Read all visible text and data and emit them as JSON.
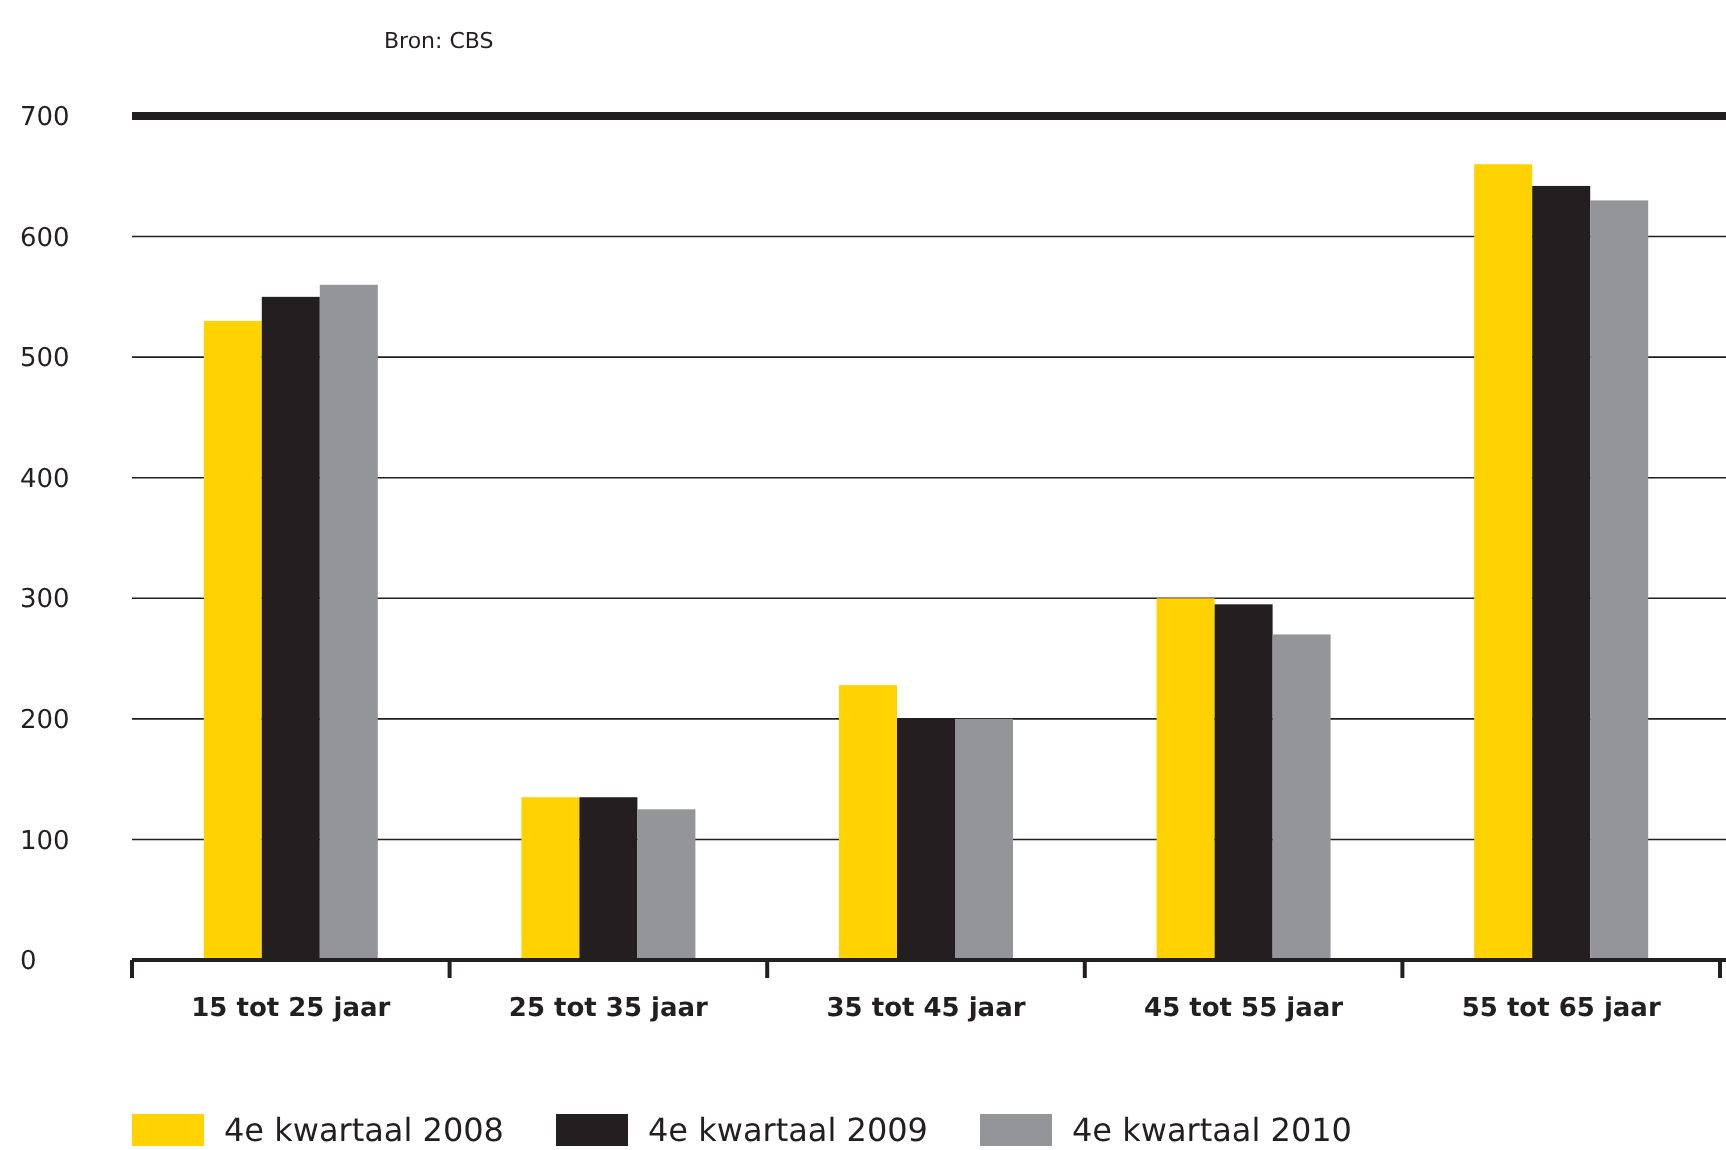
{
  "chart_data": {
    "type": "bar",
    "annotations": [
      "Bron: CBS"
    ],
    "categories": [
      "15 tot 25 jaar",
      "25 tot 35 jaar",
      "35 tot 45 jaar",
      "45 tot 55 jaar",
      "55 tot 65 jaar"
    ],
    "series": [
      {
        "name": "4e kwartaal 2008",
        "color": "#ffd200",
        "values": [
          530,
          135,
          228,
          300,
          660
        ]
      },
      {
        "name": "4e kwartaal 2009",
        "color": "#231f20",
        "values": [
          550,
          135,
          200,
          295,
          642
        ]
      },
      {
        "name": "4e kwartaal 2010",
        "color": "#939598",
        "values": [
          560,
          125,
          200,
          270,
          630
        ]
      }
    ],
    "ylim": [
      0,
      700
    ],
    "yticks": [
      0,
      100,
      200,
      300,
      400,
      500,
      600,
      700
    ],
    "grid": "y",
    "legend": "bottom"
  }
}
